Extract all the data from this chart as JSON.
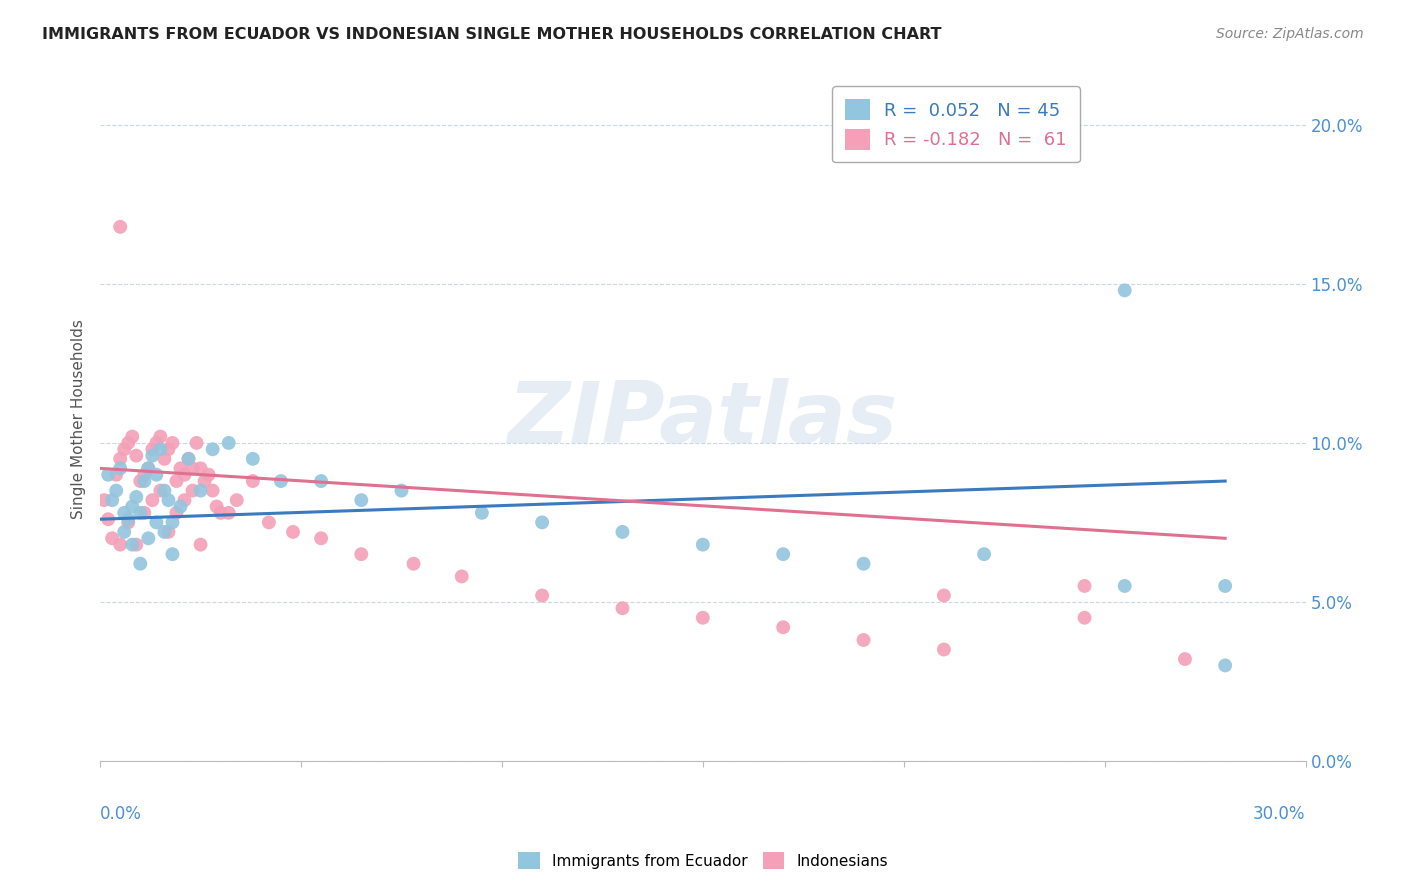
{
  "title": "IMMIGRANTS FROM ECUADOR VS INDONESIAN SINGLE MOTHER HOUSEHOLDS CORRELATION CHART",
  "source": "Source: ZipAtlas.com",
  "ylabel": "Single Mother Households",
  "ytick_values": [
    0.0,
    0.05,
    0.1,
    0.15,
    0.2
  ],
  "xlim": [
    0.0,
    0.3
  ],
  "ylim": [
    0.0,
    0.215
  ],
  "color_blue": "#92c5de",
  "color_pink": "#f4a0b8",
  "watermark": "ZIPatlas",
  "blue_scatter_x": [
    0.002,
    0.003,
    0.004,
    0.005,
    0.006,
    0.007,
    0.008,
    0.009,
    0.01,
    0.011,
    0.012,
    0.013,
    0.014,
    0.015,
    0.016,
    0.017,
    0.018,
    0.02,
    0.022,
    0.025,
    0.028,
    0.032,
    0.038,
    0.045,
    0.055,
    0.065,
    0.075,
    0.095,
    0.11,
    0.13,
    0.15,
    0.17,
    0.19,
    0.22,
    0.255,
    0.28,
    0.006,
    0.008,
    0.01,
    0.012,
    0.014,
    0.016,
    0.018,
    0.255,
    0.28
  ],
  "blue_scatter_y": [
    0.09,
    0.082,
    0.085,
    0.092,
    0.078,
    0.076,
    0.08,
    0.083,
    0.078,
    0.088,
    0.092,
    0.096,
    0.09,
    0.098,
    0.085,
    0.082,
    0.075,
    0.08,
    0.095,
    0.085,
    0.098,
    0.1,
    0.095,
    0.088,
    0.088,
    0.082,
    0.085,
    0.078,
    0.075,
    0.072,
    0.068,
    0.065,
    0.062,
    0.065,
    0.055,
    0.03,
    0.072,
    0.068,
    0.062,
    0.07,
    0.075,
    0.072,
    0.065,
    0.148,
    0.055
  ],
  "pink_scatter_x": [
    0.001,
    0.002,
    0.003,
    0.004,
    0.005,
    0.006,
    0.007,
    0.008,
    0.009,
    0.01,
    0.011,
    0.012,
    0.013,
    0.014,
    0.015,
    0.016,
    0.017,
    0.018,
    0.019,
    0.02,
    0.021,
    0.022,
    0.023,
    0.024,
    0.025,
    0.026,
    0.027,
    0.028,
    0.029,
    0.03,
    0.032,
    0.034,
    0.038,
    0.042,
    0.048,
    0.055,
    0.065,
    0.078,
    0.09,
    0.11,
    0.13,
    0.15,
    0.17,
    0.19,
    0.21,
    0.245,
    0.27,
    0.005,
    0.007,
    0.009,
    0.011,
    0.013,
    0.015,
    0.017,
    0.019,
    0.021,
    0.023,
    0.025,
    0.21,
    0.245,
    0.005
  ],
  "pink_scatter_y": [
    0.082,
    0.076,
    0.07,
    0.09,
    0.095,
    0.098,
    0.1,
    0.102,
    0.096,
    0.088,
    0.09,
    0.092,
    0.098,
    0.1,
    0.102,
    0.095,
    0.098,
    0.1,
    0.088,
    0.092,
    0.09,
    0.095,
    0.092,
    0.1,
    0.092,
    0.088,
    0.09,
    0.085,
    0.08,
    0.078,
    0.078,
    0.082,
    0.088,
    0.075,
    0.072,
    0.07,
    0.065,
    0.062,
    0.058,
    0.052,
    0.048,
    0.045,
    0.042,
    0.038,
    0.035,
    0.055,
    0.032,
    0.068,
    0.075,
    0.068,
    0.078,
    0.082,
    0.085,
    0.072,
    0.078,
    0.082,
    0.085,
    0.068,
    0.052,
    0.045,
    0.168
  ],
  "blue_trendline_x": [
    0.0,
    0.28
  ],
  "blue_trendline_y": [
    0.076,
    0.088
  ],
  "pink_trendline_x": [
    0.0,
    0.28
  ],
  "pink_trendline_y": [
    0.092,
    0.07
  ]
}
